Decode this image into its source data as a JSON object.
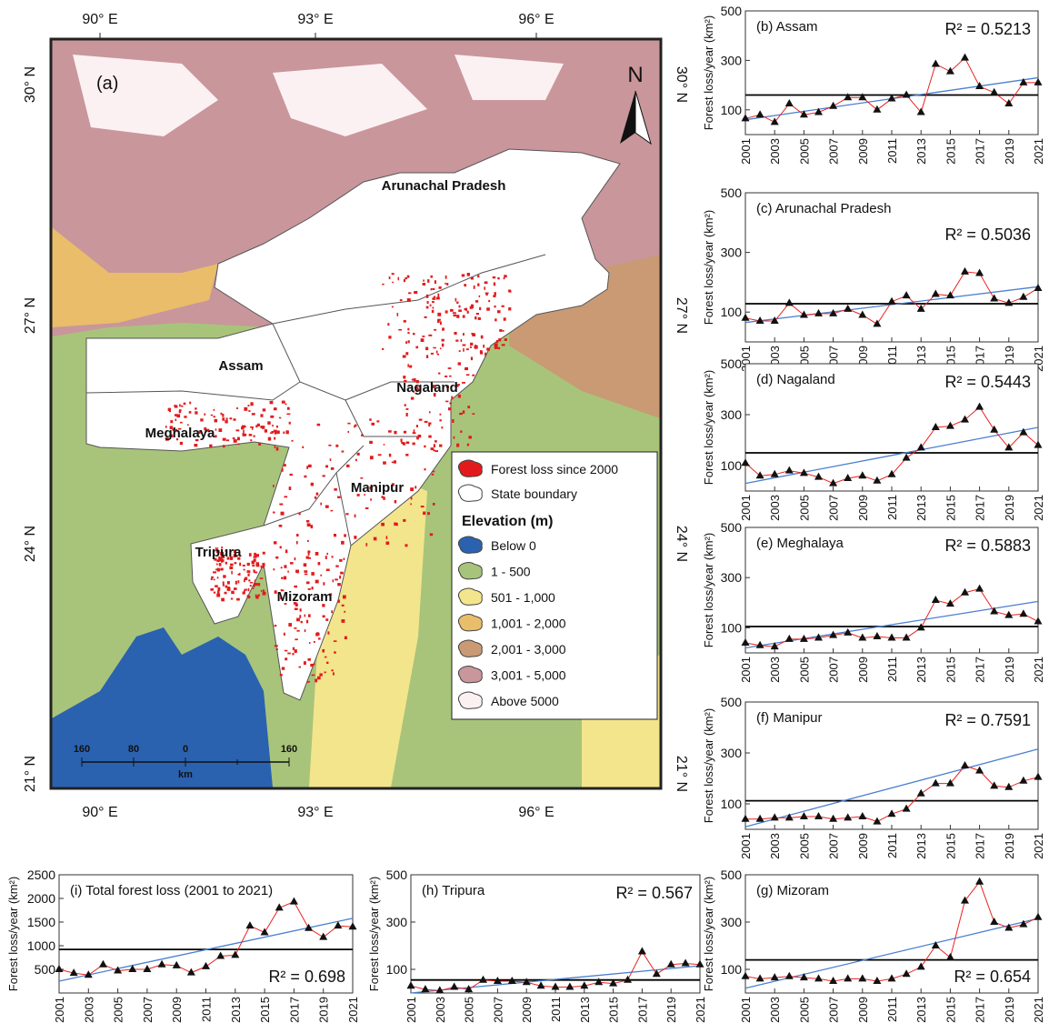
{
  "map": {
    "panel": "(a)",
    "north": "N",
    "lon_labels": [
      "90° E",
      "93° E",
      "96° E"
    ],
    "lat_labels": [
      "30° N",
      "27° N",
      "24° N",
      "21° N"
    ],
    "states": [
      "Arunachal Pradesh",
      "Assam",
      "Nagaland",
      "Meghalaya",
      "Manipur",
      "Tripura",
      "Mizoram"
    ],
    "legend": {
      "items": [
        {
          "label": "Forest loss since 2000",
          "color": "#e31a1c"
        },
        {
          "label": "State boundary",
          "color": "#ffffff"
        }
      ],
      "elevation_title": "Elevation (m)",
      "elevation": [
        {
          "label": "Below 0",
          "color": "#2a62b0"
        },
        {
          "label": "1 - 500",
          "color": "#a8c47a"
        },
        {
          "label": "501 - 1,000",
          "color": "#f3e58c"
        },
        {
          "label": "1,001 - 2,000",
          "color": "#e9bd6a"
        },
        {
          "label": "2,001 - 3,000",
          "color": "#c99a74"
        },
        {
          "label": "3,001 - 5,000",
          "color": "#c9969b"
        },
        {
          "label": "Above 5000",
          "color": "#fbf1f3"
        }
      ]
    },
    "scale": {
      "labels": [
        "160",
        "80",
        "0",
        "160"
      ],
      "unit": "km"
    }
  },
  "chart_data": [
    {
      "type": "line",
      "title": "(b) Assam",
      "annotation": "R² = 0.5213",
      "y_label": "Forest loss/year (km²)",
      "x": [
        2001,
        2002,
        2003,
        2004,
        2005,
        2006,
        2007,
        2008,
        2009,
        2010,
        2011,
        2012,
        2013,
        2014,
        2015,
        2016,
        2017,
        2018,
        2019,
        2020,
        2021
      ],
      "xlim": [
        2001,
        2021
      ],
      "xticks": [
        2001,
        2003,
        2005,
        2007,
        2009,
        2011,
        2013,
        2015,
        2017,
        2019,
        2021
      ],
      "ylim": [
        0,
        500
      ],
      "yticks": [
        100,
        300,
        500
      ],
      "series": [
        {
          "color": "#e8231f",
          "values": [
            65,
            80,
            50,
            125,
            80,
            90,
            115,
            150,
            150,
            100,
            145,
            160,
            90,
            285,
            255,
            310,
            195,
            170,
            125,
            210,
            210
          ]
        }
      ],
      "trend": {
        "color": "#4a7fd0",
        "values": [
          60,
          230
        ]
      },
      "mean": {
        "color": "#000000",
        "value": 160
      }
    },
    {
      "type": "line",
      "title": "(c) Arunachal Pradesh",
      "annotation": "R² = 0.5036",
      "y_label": "Forest loss/year (km²)",
      "x": [
        2001,
        2002,
        2003,
        2004,
        2005,
        2006,
        2007,
        2008,
        2009,
        2010,
        2011,
        2012,
        2013,
        2014,
        2015,
        2016,
        2017,
        2018,
        2019,
        2020,
        2021
      ],
      "xlim": [
        2001,
        2021
      ],
      "xticks": [
        2001,
        2003,
        2005,
        2007,
        2009,
        2011,
        2013,
        2015,
        2017,
        2019,
        2021
      ],
      "ylim": [
        0,
        500
      ],
      "yticks": [
        100,
        300,
        500
      ],
      "series": [
        {
          "color": "#e8231f",
          "values": [
            80,
            70,
            70,
            130,
            90,
            95,
            95,
            110,
            90,
            60,
            135,
            155,
            110,
            160,
            155,
            235,
            230,
            145,
            130,
            150,
            180
          ]
        }
      ],
      "trend": {
        "color": "#4a7fd0",
        "values": [
          65,
          185
        ]
      },
      "mean": {
        "color": "#000000",
        "value": 128
      }
    },
    {
      "type": "line",
      "title": "(d) Nagaland",
      "annotation": "R² = 0.5443",
      "y_label": "Forest loss/year (km²)",
      "x": [
        2001,
        2002,
        2003,
        2004,
        2005,
        2006,
        2007,
        2008,
        2009,
        2010,
        2011,
        2012,
        2013,
        2014,
        2015,
        2016,
        2017,
        2018,
        2019,
        2020,
        2021
      ],
      "xlim": [
        2001,
        2021
      ],
      "xticks": [
        2001,
        2003,
        2005,
        2007,
        2009,
        2011,
        2013,
        2015,
        2017,
        2019,
        2021
      ],
      "ylim": [
        0,
        500
      ],
      "yticks": [
        100,
        300,
        500
      ],
      "series": [
        {
          "color": "#e8231f",
          "values": [
            110,
            60,
            65,
            80,
            70,
            55,
            30,
            50,
            60,
            40,
            65,
            130,
            170,
            250,
            255,
            280,
            330,
            240,
            170,
            230,
            180
          ]
        }
      ],
      "trend": {
        "color": "#4a7fd0",
        "values": [
          30,
          250
        ]
      },
      "mean": {
        "color": "#000000",
        "value": 150
      }
    },
    {
      "type": "line",
      "title": "(e) Meghalaya",
      "annotation": "R² = 0.5883",
      "y_label": "Forest loss/year (km²)",
      "x": [
        2001,
        2002,
        2003,
        2004,
        2005,
        2006,
        2007,
        2008,
        2009,
        2010,
        2011,
        2012,
        2013,
        2014,
        2015,
        2016,
        2017,
        2018,
        2019,
        2020,
        2021
      ],
      "xlim": [
        2001,
        2021
      ],
      "xticks": [
        2001,
        2003,
        2005,
        2007,
        2009,
        2011,
        2013,
        2015,
        2017,
        2019,
        2021
      ],
      "ylim": [
        0,
        500
      ],
      "yticks": [
        100,
        300,
        500
      ],
      "series": [
        {
          "color": "#e8231f",
          "values": [
            40,
            30,
            25,
            55,
            55,
            60,
            70,
            80,
            60,
            65,
            60,
            60,
            100,
            210,
            195,
            240,
            255,
            165,
            150,
            155,
            125
          ]
        }
      ],
      "trend": {
        "color": "#4a7fd0",
        "values": [
          20,
          205
        ]
      },
      "mean": {
        "color": "#000000",
        "value": 105
      }
    },
    {
      "type": "line",
      "title": "(f) Manipur",
      "annotation": "R² = 0.7591",
      "y_label": "Forest loss/year (km²)",
      "x": [
        2001,
        2002,
        2003,
        2004,
        2005,
        2006,
        2007,
        2008,
        2009,
        2010,
        2011,
        2012,
        2013,
        2014,
        2015,
        2016,
        2017,
        2018,
        2019,
        2020,
        2021
      ],
      "xlim": [
        2001,
        2021
      ],
      "xticks": [
        2001,
        2003,
        2005,
        2007,
        2009,
        2011,
        2013,
        2015,
        2017,
        2019,
        2021
      ],
      "ylim": [
        0,
        500
      ],
      "yticks": [
        100,
        300,
        500
      ],
      "series": [
        {
          "color": "#e8231f",
          "values": [
            40,
            40,
            45,
            45,
            50,
            50,
            40,
            45,
            50,
            30,
            60,
            80,
            140,
            180,
            180,
            250,
            230,
            170,
            165,
            190,
            205
          ]
        }
      ],
      "trend": {
        "color": "#4a7fd0",
        "values": [
          10,
          315
        ]
      },
      "mean": {
        "color": "#000000",
        "value": 112
      }
    },
    {
      "type": "line",
      "title": "(g) Mizoram",
      "annotation": "R² = 0.654",
      "y_label": "Forest loss/year (km²)",
      "x": [
        2001,
        2002,
        2003,
        2004,
        2005,
        2006,
        2007,
        2008,
        2009,
        2010,
        2011,
        2012,
        2013,
        2014,
        2015,
        2016,
        2017,
        2018,
        2019,
        2020,
        2021
      ],
      "xlim": [
        2001,
        2021
      ],
      "xticks": [
        2001,
        2003,
        2005,
        2007,
        2009,
        2011,
        2013,
        2015,
        2017,
        2019,
        2021
      ],
      "ylim": [
        0,
        500
      ],
      "yticks": [
        100,
        300,
        500
      ],
      "series": [
        {
          "color": "#e8231f",
          "values": [
            70,
            60,
            65,
            70,
            65,
            60,
            50,
            60,
            60,
            50,
            60,
            80,
            110,
            200,
            150,
            390,
            470,
            300,
            275,
            290,
            320
          ]
        }
      ],
      "trend": {
        "color": "#4a7fd0",
        "values": [
          20,
          315
        ]
      },
      "mean": {
        "color": "#000000",
        "value": 140
      }
    },
    {
      "type": "line",
      "title": "(h) Tripura",
      "annotation": "R² = 0.567",
      "y_label": "Forest loss/year (km²)",
      "x": [
        2001,
        2002,
        2003,
        2004,
        2005,
        2006,
        2007,
        2008,
        2009,
        2010,
        2011,
        2012,
        2013,
        2014,
        2015,
        2016,
        2017,
        2018,
        2019,
        2020,
        2021
      ],
      "xlim": [
        2001,
        2021
      ],
      "xticks": [
        2001,
        2003,
        2005,
        2007,
        2009,
        2011,
        2013,
        2015,
        2017,
        2019,
        2021
      ],
      "ylim": [
        0,
        500
      ],
      "yticks": [
        100,
        300,
        500
      ],
      "series": [
        {
          "color": "#e8231f",
          "values": [
            30,
            15,
            10,
            25,
            15,
            55,
            50,
            50,
            45,
            30,
            25,
            25,
            30,
            45,
            40,
            55,
            175,
            80,
            120,
            125,
            120
          ]
        }
      ],
      "trend": {
        "color": "#4a7fd0",
        "values": [
          0,
          115
        ]
      },
      "mean": {
        "color": "#000000",
        "value": 55
      }
    },
    {
      "type": "line",
      "title": "(i) Total forest loss (2001 to 2021)",
      "annotation": "R² =  0.698",
      "y_label": "Forest loss/year (km²)",
      "x": [
        2001,
        2002,
        2003,
        2004,
        2005,
        2006,
        2007,
        2008,
        2009,
        2010,
        2011,
        2012,
        2013,
        2014,
        2015,
        2016,
        2017,
        2018,
        2019,
        2020,
        2021
      ],
      "xlim": [
        2001,
        2021
      ],
      "xticks": [
        2001,
        2003,
        2005,
        2007,
        2009,
        2011,
        2013,
        2015,
        2017,
        2019,
        2021
      ],
      "ylim": [
        0,
        2500
      ],
      "yticks": [
        500,
        1000,
        1500,
        2000,
        2500
      ],
      "series": [
        {
          "color": "#e8231f",
          "values": [
            500,
            420,
            380,
            600,
            470,
            500,
            500,
            600,
            580,
            430,
            560,
            780,
            800,
            1420,
            1280,
            1800,
            1930,
            1370,
            1180,
            1420,
            1400
          ]
        }
      ],
      "trend": {
        "color": "#4a7fd0",
        "values": [
          250,
          1580
        ]
      },
      "mean": {
        "color": "#000000",
        "value": 920
      }
    }
  ]
}
